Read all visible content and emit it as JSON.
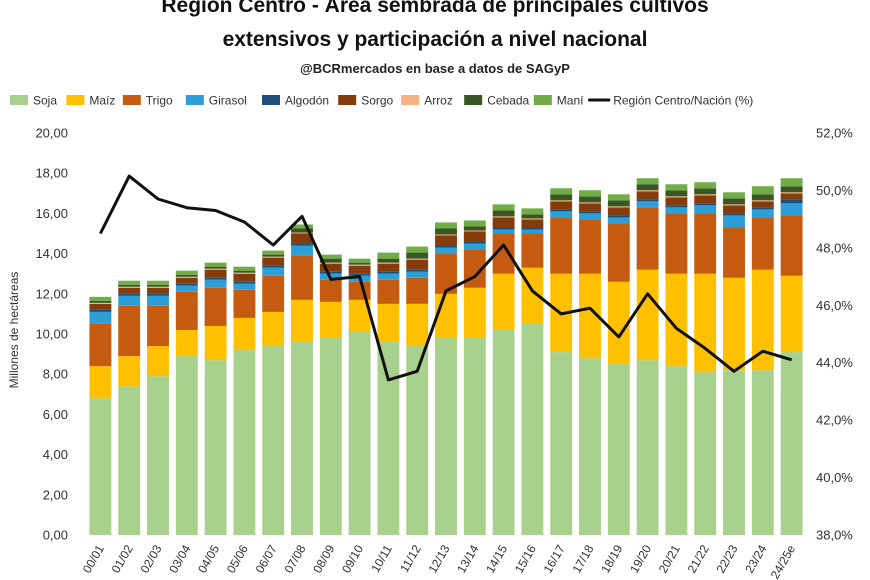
{
  "chart_data": {
    "type": "bar",
    "title_lines": [
      "Región Centro - Área sembrada de principales cultivos",
      "extensivos y participación a nivel nacional"
    ],
    "subtitle": "@BCRmercados en base a datos de SAGyP",
    "ylabel": "Millones de hectáreas",
    "y_ticks": [
      "0,00",
      "2,00",
      "4,00",
      "6,00",
      "8,00",
      "10,00",
      "12,00",
      "14,00",
      "16,00",
      "18,00",
      "20,00"
    ],
    "y2_ticks": [
      "38,0%",
      "40,0%",
      "42,0%",
      "44,0%",
      "46,0%",
      "48,0%",
      "50,0%",
      "52,0%"
    ],
    "ylim": [
      0,
      20
    ],
    "y2lim": [
      38,
      52
    ],
    "categories": [
      "2000/01",
      "2001/02",
      "2002/03",
      "2003/04",
      "2004/05",
      "2005/06",
      "2006/07",
      "2007/08",
      "2008/09",
      "2009/10",
      "2010/11",
      "2011/12",
      "2012/13",
      "2013/14",
      "2014/15",
      "2015/16",
      "2016/17",
      "2017/18",
      "2018/19",
      "2019/20",
      "2020/21",
      "2021/22",
      "2022/23",
      "2023/24",
      "2024/25e"
    ],
    "category_labels": [
      "00/01",
      "01/02",
      "02/03",
      "03/04",
      "04/05",
      "05/06",
      "06/07",
      "07/08",
      "08/09",
      "09/10",
      "10/11",
      "11/12",
      "12/13",
      "13/14",
      "14/15",
      "15/16",
      "16/17",
      "17/18",
      "18/19",
      "19/20",
      "20/21",
      "21/22",
      "22/23",
      "23/24",
      "24/25e"
    ],
    "series": [
      {
        "name": "Soja",
        "color": "#a9d18e",
        "values": [
          6.8,
          7.4,
          7.9,
          8.9,
          8.7,
          9.2,
          9.4,
          9.6,
          9.8,
          10.1,
          9.6,
          9.4,
          9.8,
          9.8,
          10.2,
          10.5,
          9.1,
          8.8,
          8.5,
          8.7,
          8.4,
          8.1,
          8.2,
          8.2,
          9.1
        ]
      },
      {
        "name": "Maíz",
        "color": "#ffc000",
        "values": [
          1.6,
          1.5,
          1.5,
          1.3,
          1.7,
          1.6,
          1.7,
          2.1,
          1.8,
          1.6,
          1.9,
          2.1,
          2.2,
          2.5,
          2.8,
          2.8,
          3.9,
          4.2,
          4.1,
          4.5,
          4.6,
          4.9,
          4.6,
          5.0,
          3.8
        ]
      },
      {
        "name": "Trigo",
        "color": "#c55a11",
        "values": [
          2.1,
          2.5,
          2.0,
          1.9,
          1.9,
          1.4,
          1.8,
          2.2,
          1.1,
          0.9,
          1.2,
          1.3,
          2.0,
          1.9,
          2.0,
          1.7,
          2.8,
          2.7,
          2.9,
          3.1,
          3.0,
          3.0,
          2.5,
          2.6,
          3.0
        ]
      },
      {
        "name": "Girasol",
        "color": "#2e9fd6",
        "values": [
          0.6,
          0.5,
          0.5,
          0.3,
          0.4,
          0.3,
          0.4,
          0.5,
          0.3,
          0.3,
          0.3,
          0.3,
          0.3,
          0.3,
          0.2,
          0.2,
          0.3,
          0.3,
          0.3,
          0.3,
          0.3,
          0.4,
          0.6,
          0.4,
          0.6
        ]
      },
      {
        "name": "Algodón",
        "color": "#1f4e79",
        "values": [
          0.1,
          0.1,
          0.1,
          0.1,
          0.1,
          0.1,
          0.1,
          0.1,
          0.1,
          0.1,
          0.1,
          0.1,
          0.1,
          0.1,
          0.1,
          0.1,
          0.1,
          0.1,
          0.1,
          0.1,
          0.1,
          0.1,
          0.1,
          0.1,
          0.2
        ]
      },
      {
        "name": "Sorgo",
        "color": "#843c0c",
        "values": [
          0.3,
          0.3,
          0.3,
          0.3,
          0.4,
          0.4,
          0.4,
          0.5,
          0.4,
          0.4,
          0.4,
          0.5,
          0.5,
          0.5,
          0.5,
          0.4,
          0.4,
          0.4,
          0.4,
          0.4,
          0.4,
          0.4,
          0.4,
          0.3,
          0.3
        ]
      },
      {
        "name": "Arroz",
        "color": "#f4b183",
        "values": [
          0.05,
          0.05,
          0.05,
          0.05,
          0.05,
          0.05,
          0.05,
          0.05,
          0.05,
          0.05,
          0.05,
          0.05,
          0.05,
          0.05,
          0.05,
          0.05,
          0.05,
          0.05,
          0.05,
          0.05,
          0.05,
          0.05,
          0.05,
          0.05,
          0.05
        ]
      },
      {
        "name": "Cebada",
        "color": "#385723",
        "values": [
          0.1,
          0.1,
          0.1,
          0.1,
          0.1,
          0.1,
          0.1,
          0.2,
          0.2,
          0.1,
          0.2,
          0.3,
          0.3,
          0.2,
          0.3,
          0.2,
          0.3,
          0.3,
          0.3,
          0.3,
          0.3,
          0.3,
          0.3,
          0.3,
          0.3
        ]
      },
      {
        "name": "Maní",
        "color": "#70ad47",
        "values": [
          0.2,
          0.2,
          0.2,
          0.2,
          0.2,
          0.2,
          0.2,
          0.2,
          0.2,
          0.2,
          0.3,
          0.3,
          0.3,
          0.3,
          0.3,
          0.3,
          0.3,
          0.3,
          0.3,
          0.3,
          0.3,
          0.3,
          0.3,
          0.4,
          0.4
        ]
      }
    ],
    "line_series": {
      "name": "Región Centro/Nación (%)",
      "color": "#111111",
      "axis": "right",
      "values": [
        48.5,
        50.5,
        49.7,
        49.4,
        49.3,
        48.9,
        48.1,
        49.1,
        46.9,
        47.0,
        43.4,
        43.7,
        46.5,
        47.0,
        48.1,
        46.5,
        45.7,
        45.9,
        44.9,
        46.4,
        45.2,
        44.5,
        43.7,
        44.4,
        44.1
      ]
    },
    "legend_position": "top"
  }
}
